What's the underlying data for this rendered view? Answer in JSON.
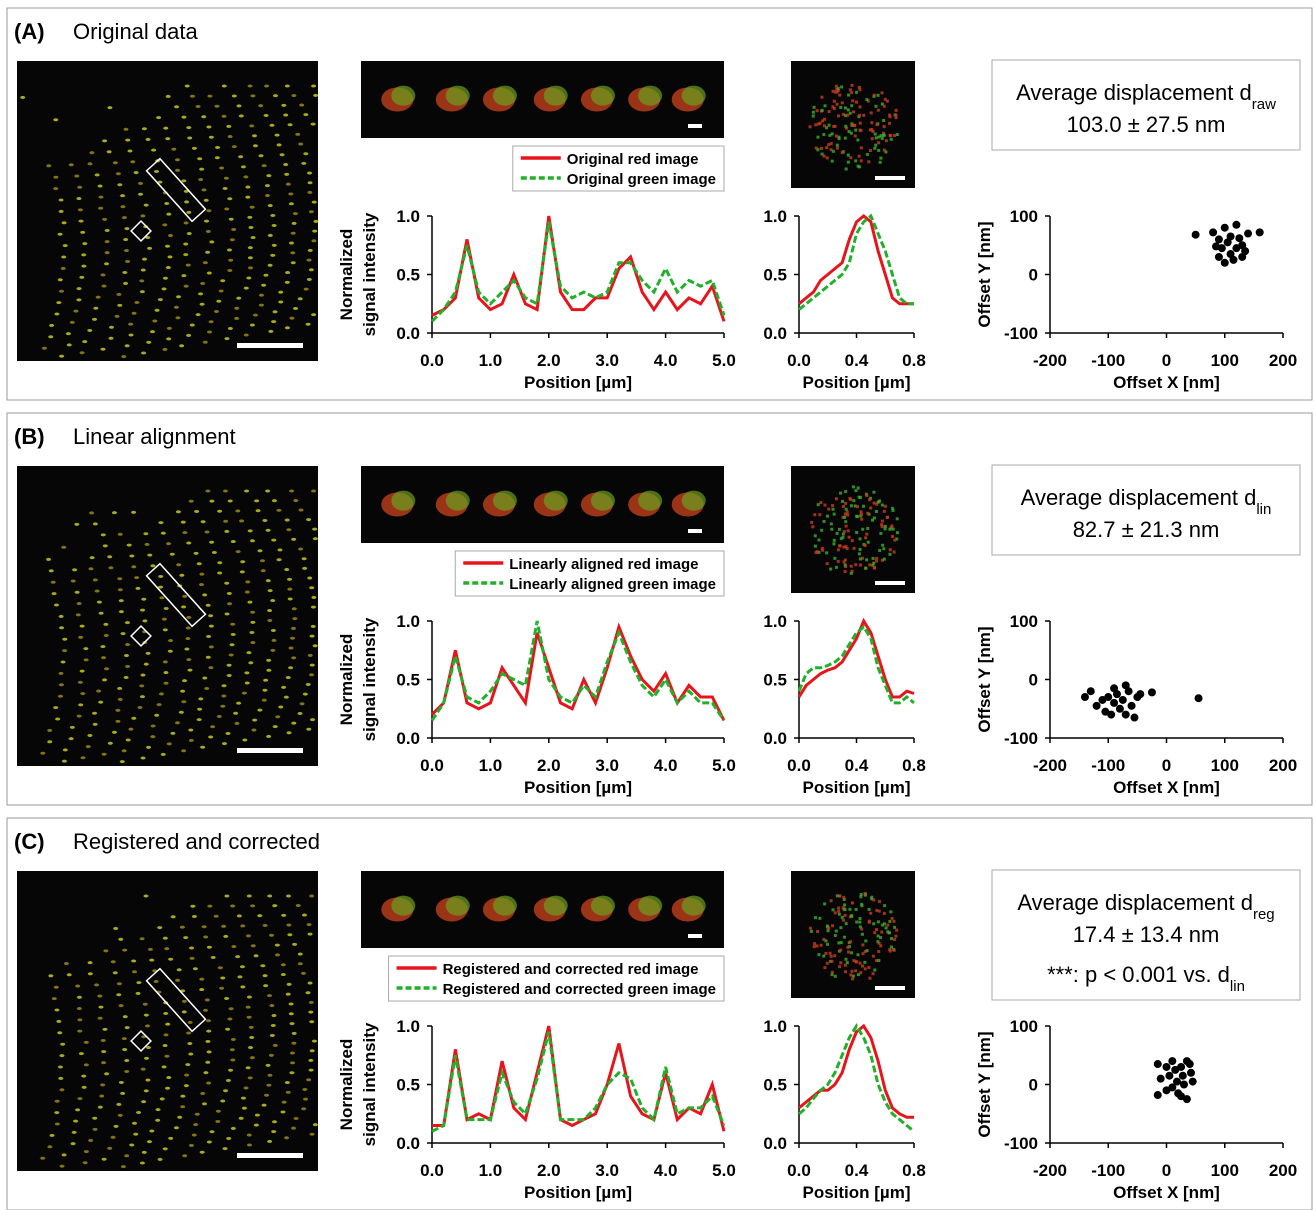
{
  "panels": [
    {
      "label": "(A)",
      "title": "Original data",
      "profile": {
        "xlabel": "Position [µm]",
        "ylabel": [
          "Normalized",
          "signal intensity"
        ],
        "xlim": [
          0,
          5
        ],
        "ylim": [
          0,
          1
        ],
        "xticks": [
          {
            "value": 0,
            "label": "0.0"
          },
          {
            "value": 1,
            "label": "1.0"
          },
          {
            "value": 2,
            "label": "2.0"
          },
          {
            "value": 3,
            "label": "3.0"
          },
          {
            "value": 4,
            "label": "4.0"
          },
          {
            "value": 5,
            "label": "5.0"
          }
        ],
        "yticks": [
          {
            "value": 0,
            "label": "0.0"
          },
          0.5,
          {
            "value": 1,
            "label": "1.0"
          }
        ],
        "x": [
          0,
          0.2,
          0.4,
          0.6,
          0.8,
          1,
          1.2,
          1.4,
          1.6,
          1.8,
          2,
          2.2,
          2.4,
          2.6,
          2.8,
          3,
          3.2,
          3.4,
          3.6,
          3.8,
          4,
          4.2,
          4.4,
          4.6,
          4.8,
          5
        ],
        "series": [
          {
            "name": "Original red image",
            "color": "#e8141c",
            "style": "solid",
            "values": [
              0.15,
              0.2,
              0.3,
              0.8,
              0.3,
              0.2,
              0.25,
              0.5,
              0.25,
              0.2,
              1.0,
              0.35,
              0.2,
              0.2,
              0.3,
              0.3,
              0.55,
              0.65,
              0.35,
              0.2,
              0.35,
              0.2,
              0.3,
              0.25,
              0.4,
              0.1
            ]
          },
          {
            "name": "Original green image",
            "color": "#22b02a",
            "style": "dashed",
            "values": [
              0.1,
              0.2,
              0.35,
              0.75,
              0.35,
              0.25,
              0.35,
              0.45,
              0.3,
              0.25,
              0.95,
              0.4,
              0.3,
              0.35,
              0.3,
              0.35,
              0.6,
              0.6,
              0.45,
              0.35,
              0.55,
              0.35,
              0.45,
              0.4,
              0.45,
              0.15
            ]
          }
        ]
      },
      "zoom": {
        "xlabel": "Position [µm]",
        "xlim": [
          0,
          0.8
        ],
        "ylim": [
          0,
          1
        ],
        "xticks": [
          {
            "value": 0,
            "label": "0.0"
          },
          0.4,
          0.8
        ],
        "yticks": [
          {
            "value": 0,
            "label": "0.0"
          },
          0.5,
          {
            "value": 1,
            "label": "1.0"
          }
        ],
        "x": [
          0,
          0.05,
          0.1,
          0.15,
          0.2,
          0.25,
          0.3,
          0.35,
          0.4,
          0.45,
          0.5,
          0.55,
          0.6,
          0.65,
          0.7,
          0.75,
          0.8
        ],
        "series": [
          {
            "color": "#e8141c",
            "style": "solid",
            "values": [
              0.25,
              0.3,
              0.35,
              0.45,
              0.5,
              0.55,
              0.6,
              0.8,
              0.95,
              1.0,
              0.95,
              0.7,
              0.5,
              0.3,
              0.25,
              0.25,
              0.25
            ]
          },
          {
            "color": "#22b02a",
            "style": "dashed",
            "values": [
              0.2,
              0.25,
              0.3,
              0.35,
              0.4,
              0.45,
              0.5,
              0.6,
              0.85,
              0.95,
              1.0,
              0.85,
              0.7,
              0.5,
              0.3,
              0.25,
              0.25
            ]
          }
        ]
      },
      "box": [
        {
          "text": "Average displacement d",
          "sub": "raw"
        },
        {
          "text": "103.0 ± 27.5 nm"
        }
      ],
      "scatter": {
        "xlabel": "Offset X [nm]",
        "ylabel": "Offset Y [nm]",
        "xlim": [
          -200,
          200
        ],
        "ylim": [
          -100,
          100
        ],
        "xticks": [
          -200,
          -100,
          0,
          100,
          200
        ],
        "yticks": [
          -100,
          0,
          100
        ],
        "color": "#000000",
        "x": [
          50,
          80,
          90,
          95,
          100,
          105,
          110,
          115,
          120,
          125,
          130,
          135,
          140,
          100,
          85,
          110,
          130,
          160,
          120,
          90
        ],
        "y": [
          68,
          72,
          60,
          45,
          80,
          55,
          35,
          25,
          85,
          62,
          50,
          40,
          70,
          20,
          48,
          65,
          30,
          72,
          45,
          30
        ]
      }
    },
    {
      "label": "(B)",
      "title": "Linear alignment",
      "profile": {
        "xlabel": "Position [µm]",
        "ylabel": [
          "Normalized",
          "signal intensity"
        ],
        "xlim": [
          0,
          5
        ],
        "ylim": [
          0,
          1
        ],
        "xticks": [
          {
            "value": 0,
            "label": "0.0"
          },
          {
            "value": 1,
            "label": "1.0"
          },
          {
            "value": 2,
            "label": "2.0"
          },
          {
            "value": 3,
            "label": "3.0"
          },
          {
            "value": 4,
            "label": "4.0"
          },
          {
            "value": 5,
            "label": "5.0"
          }
        ],
        "yticks": [
          {
            "value": 0,
            "label": "0.0"
          },
          0.5,
          {
            "value": 1,
            "label": "1.0"
          }
        ],
        "x": [
          0,
          0.2,
          0.4,
          0.6,
          0.8,
          1,
          1.2,
          1.4,
          1.6,
          1.8,
          2,
          2.2,
          2.4,
          2.6,
          2.8,
          3,
          3.2,
          3.4,
          3.6,
          3.8,
          4,
          4.2,
          4.4,
          4.6,
          4.8,
          5
        ],
        "series": [
          {
            "name": "Linearly aligned red image",
            "color": "#e8141c",
            "style": "solid",
            "values": [
              0.2,
              0.3,
              0.75,
              0.3,
              0.25,
              0.3,
              0.6,
              0.45,
              0.3,
              0.9,
              0.6,
              0.3,
              0.25,
              0.5,
              0.3,
              0.6,
              0.95,
              0.7,
              0.5,
              0.4,
              0.55,
              0.3,
              0.45,
              0.35,
              0.35,
              0.15
            ]
          },
          {
            "name": "Linearly aligned green image",
            "color": "#22b02a",
            "style": "dashed",
            "values": [
              0.15,
              0.3,
              0.7,
              0.35,
              0.3,
              0.4,
              0.55,
              0.5,
              0.45,
              1.0,
              0.5,
              0.35,
              0.3,
              0.45,
              0.35,
              0.65,
              0.9,
              0.65,
              0.45,
              0.35,
              0.5,
              0.3,
              0.4,
              0.3,
              0.3,
              0.15
            ]
          }
        ]
      },
      "zoom": {
        "xlabel": "Position [µm]",
        "xlim": [
          0,
          0.8
        ],
        "ylim": [
          0,
          1
        ],
        "xticks": [
          {
            "value": 0,
            "label": "0.0"
          },
          0.4,
          0.8
        ],
        "yticks": [
          {
            "value": 0,
            "label": "0.0"
          },
          0.5,
          {
            "value": 1,
            "label": "1.0"
          }
        ],
        "x": [
          0,
          0.05,
          0.1,
          0.15,
          0.2,
          0.25,
          0.3,
          0.35,
          0.4,
          0.45,
          0.5,
          0.55,
          0.6,
          0.65,
          0.7,
          0.75,
          0.8
        ],
        "series": [
          {
            "color": "#e8141c",
            "style": "solid",
            "values": [
              0.35,
              0.45,
              0.5,
              0.55,
              0.58,
              0.6,
              0.65,
              0.75,
              0.85,
              1.0,
              0.9,
              0.7,
              0.5,
              0.35,
              0.35,
              0.4,
              0.38
            ]
          },
          {
            "color": "#22b02a",
            "style": "dashed",
            "values": [
              0.4,
              0.55,
              0.6,
              0.6,
              0.62,
              0.65,
              0.7,
              0.8,
              0.9,
              0.95,
              0.85,
              0.6,
              0.45,
              0.3,
              0.3,
              0.35,
              0.3
            ]
          }
        ]
      },
      "box": [
        {
          "text": "Average displacement d",
          "sub": "lin"
        },
        {
          "text": "82.7 ± 21.3 nm"
        }
      ],
      "scatter": {
        "xlabel": "Offset X [nm]",
        "ylabel": "Offset Y [nm]",
        "xlim": [
          -200,
          200
        ],
        "ylim": [
          -100,
          100
        ],
        "xticks": [
          -200,
          -100,
          0,
          100,
          200
        ],
        "yticks": [
          -100,
          0,
          100
        ],
        "color": "#000000",
        "x": [
          -140,
          -130,
          -120,
          -110,
          -105,
          -100,
          -95,
          -90,
          -85,
          -80,
          -75,
          -70,
          -65,
          -60,
          -55,
          -50,
          -45,
          -25,
          55,
          -90,
          -70
        ],
        "y": [
          -30,
          -20,
          -45,
          -35,
          -55,
          -30,
          -60,
          -40,
          -25,
          -50,
          -35,
          -60,
          -20,
          -45,
          -65,
          -30,
          -25,
          -22,
          -32,
          -15,
          -10
        ]
      }
    },
    {
      "label": "(C)",
      "title": "Registered and corrected",
      "profile": {
        "xlabel": "Position [µm]",
        "ylabel": [
          "Normalized",
          "signal intensity"
        ],
        "xlim": [
          0,
          5
        ],
        "ylim": [
          0,
          1
        ],
        "xticks": [
          {
            "value": 0,
            "label": "0.0"
          },
          {
            "value": 1,
            "label": "1.0"
          },
          {
            "value": 2,
            "label": "2.0"
          },
          {
            "value": 3,
            "label": "3.0"
          },
          {
            "value": 4,
            "label": "4.0"
          },
          {
            "value": 5,
            "label": "5.0"
          }
        ],
        "yticks": [
          {
            "value": 0,
            "label": "0.0"
          },
          0.5,
          {
            "value": 1,
            "label": "1.0"
          }
        ],
        "x": [
          0,
          0.2,
          0.4,
          0.6,
          0.8,
          1,
          1.2,
          1.4,
          1.6,
          1.8,
          2,
          2.2,
          2.4,
          2.6,
          2.8,
          3,
          3.2,
          3.4,
          3.6,
          3.8,
          4,
          4.2,
          4.4,
          4.6,
          4.8,
          5
        ],
        "series": [
          {
            "name": "Registered and corrected red image",
            "color": "#e8141c",
            "style": "solid",
            "values": [
              0.15,
              0.15,
              0.8,
              0.2,
              0.25,
              0.2,
              0.7,
              0.3,
              0.2,
              0.6,
              1.0,
              0.2,
              0.15,
              0.2,
              0.25,
              0.5,
              0.85,
              0.4,
              0.25,
              0.2,
              0.6,
              0.2,
              0.3,
              0.25,
              0.5,
              0.1
            ]
          },
          {
            "name": "Registered and corrected green image",
            "color": "#22b02a",
            "style": "dashed",
            "values": [
              0.1,
              0.15,
              0.75,
              0.2,
              0.2,
              0.2,
              0.6,
              0.35,
              0.25,
              0.55,
              0.95,
              0.2,
              0.2,
              0.2,
              0.3,
              0.5,
              0.6,
              0.55,
              0.3,
              0.2,
              0.65,
              0.25,
              0.3,
              0.3,
              0.4,
              0.15
            ]
          }
        ]
      },
      "zoom": {
        "xlabel": "Position [µm]",
        "xlim": [
          0,
          0.8
        ],
        "ylim": [
          0,
          1
        ],
        "xticks": [
          {
            "value": 0,
            "label": "0.0"
          },
          0.4,
          0.8
        ],
        "yticks": [
          {
            "value": 0,
            "label": "0.0"
          },
          0.5,
          {
            "value": 1,
            "label": "1.0"
          }
        ],
        "x": [
          0,
          0.05,
          0.1,
          0.15,
          0.2,
          0.25,
          0.3,
          0.35,
          0.4,
          0.45,
          0.5,
          0.55,
          0.6,
          0.65,
          0.7,
          0.75,
          0.8
        ],
        "series": [
          {
            "color": "#e8141c",
            "style": "solid",
            "values": [
              0.3,
              0.35,
              0.4,
              0.45,
              0.45,
              0.5,
              0.6,
              0.8,
              0.95,
              1.0,
              0.9,
              0.7,
              0.45,
              0.3,
              0.25,
              0.22,
              0.22
            ]
          },
          {
            "color": "#22b02a",
            "style": "dashed",
            "values": [
              0.25,
              0.3,
              0.38,
              0.45,
              0.5,
              0.6,
              0.75,
              0.9,
              1.0,
              0.9,
              0.75,
              0.5,
              0.35,
              0.25,
              0.2,
              0.15,
              0.1
            ]
          }
        ]
      },
      "box": [
        {
          "text": "Average displacement d",
          "sub": "reg"
        },
        {
          "text": "17.4 ± 13.4 nm"
        },
        {
          "text": "***: p < 0.001 vs. d",
          "sub": "lin"
        }
      ],
      "scatter": {
        "xlabel": "Offset X [nm]",
        "ylabel": "Offset Y [nm]",
        "xlim": [
          -200,
          200
        ],
        "ylim": [
          -100,
          100
        ],
        "xticks": [
          -200,
          -100,
          0,
          100,
          200
        ],
        "yticks": [
          -100,
          0,
          100
        ],
        "color": "#000000",
        "x": [
          -15,
          -10,
          -15,
          0,
          5,
          0,
          10,
          15,
          18,
          20,
          25,
          28,
          30,
          35,
          40,
          42,
          45,
          25,
          10,
          35
        ],
        "y": [
          35,
          10,
          -18,
          30,
          15,
          -10,
          40,
          25,
          5,
          -15,
          30,
          15,
          0,
          -25,
          35,
          20,
          5,
          -20,
          -5,
          40
        ]
      }
    }
  ]
}
